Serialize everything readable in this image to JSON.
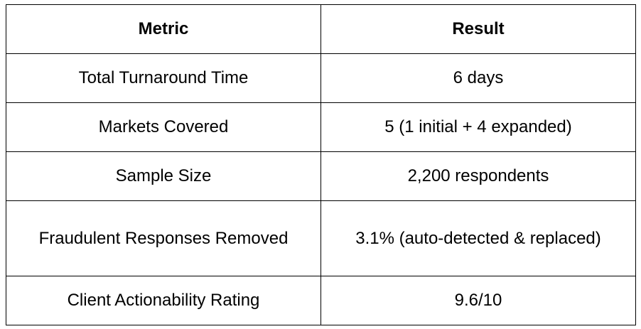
{
  "table": {
    "headers": [
      "Metric",
      "Result"
    ],
    "rows": [
      [
        "Total Turnaround Time",
        "6 days"
      ],
      [
        "Markets Covered",
        "5 (1 initial + 4 expanded)"
      ],
      [
        "Sample Size",
        "2,200 respondents"
      ],
      [
        "Fraudulent Responses Removed",
        "3.1% (auto-detected & replaced)"
      ],
      [
        "Client Actionability Rating",
        "9.6/10"
      ]
    ]
  }
}
